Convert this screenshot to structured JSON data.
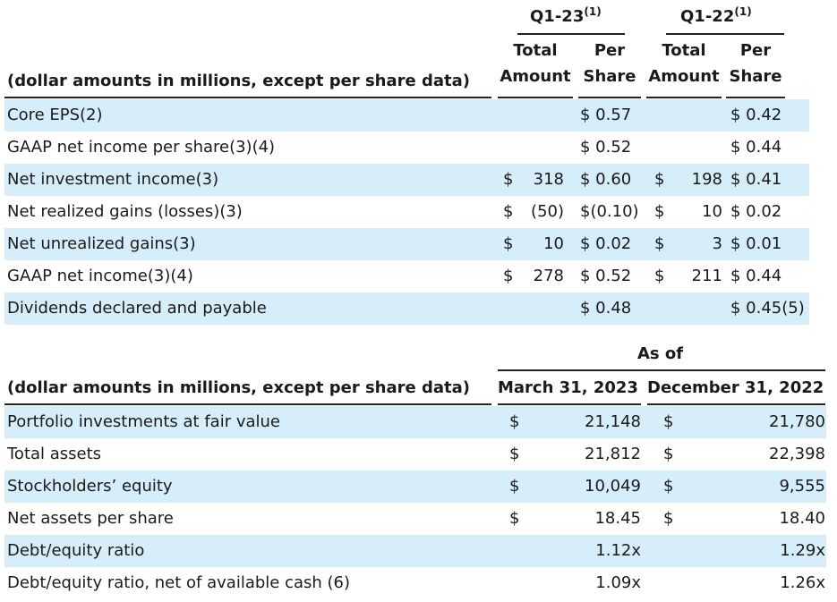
{
  "table1": {
    "periods": [
      {
        "label": "Q1-23",
        "note": "(1)"
      },
      {
        "label": "Q1-22",
        "note": "(1)"
      }
    ],
    "sub_headers": {
      "total_line1": "Total",
      "total_line2": "Amount",
      "per_line1": "Per",
      "per_line2": "Share"
    },
    "caption": "(dollar amounts in millions, except per share data)",
    "rows": [
      {
        "label": "Core EPS(2)",
        "q123_sign": "",
        "q123_total": "",
        "q123_per": "$ 0.57",
        "q122_sign": "",
        "q122_total": "",
        "q122_per": "$ 0.42"
      },
      {
        "label": "GAAP net income per share(3)(4)",
        "q123_sign": "",
        "q123_total": "",
        "q123_per": "$ 0.52",
        "q122_sign": "",
        "q122_total": "",
        "q122_per": "$ 0.44"
      },
      {
        "label": "Net investment income(3)",
        "q123_sign": "$",
        "q123_total": "318",
        "q123_per": "$ 0.60",
        "q122_sign": "$",
        "q122_total": "198",
        "q122_per": "$ 0.41"
      },
      {
        "label": "Net realized gains (losses)(3)",
        "q123_sign": "$",
        "q123_total": "(50)",
        "q123_per": "$(0.10)",
        "q122_sign": "$",
        "q122_total": "10",
        "q122_per": "$ 0.02"
      },
      {
        "label": "Net unrealized gains(3)",
        "q123_sign": "$",
        "q123_total": "10",
        "q123_per": "$ 0.02",
        "q122_sign": "$",
        "q122_total": "3",
        "q122_per": "$ 0.01"
      },
      {
        "label": "GAAP net income(3)(4)",
        "q123_sign": "$",
        "q123_total": "278",
        "q123_per": "$ 0.52",
        "q122_sign": "$",
        "q122_total": "211",
        "q122_per": "$ 0.44"
      },
      {
        "label": "Dividends declared and payable",
        "q123_sign": "",
        "q123_total": "",
        "q123_per": "$ 0.48",
        "q122_sign": "",
        "q122_total": "",
        "q122_per": "$ 0.45(5)"
      }
    ]
  },
  "table2": {
    "as_of": "As of",
    "caption": "(dollar amounts in millions, except per share data)",
    "col1": "March 31, 2023",
    "col2": "December 31, 2022",
    "rows": [
      {
        "label": "Portfolio investments at fair value",
        "sign1": "$",
        "v1": "21,148",
        "sign2": "$",
        "v2": "21,780"
      },
      {
        "label": "Total assets",
        "sign1": "$",
        "v1": "21,812",
        "sign2": "$",
        "v2": "22,398"
      },
      {
        "label": "Stockholders’ equity",
        "sign1": "$",
        "v1": "10,049",
        "sign2": "$",
        "v2": "9,555"
      },
      {
        "label": "Net assets per share",
        "sign1": "$",
        "v1": "18.45",
        "sign2": "$",
        "v2": "18.40"
      },
      {
        "label": "Debt/equity ratio",
        "sign1": "",
        "v1": "1.12x",
        "sign2": "",
        "v2": "1.29x"
      },
      {
        "label": "Debt/equity ratio, net of available cash (6)",
        "sign1": "",
        "v1": "1.09x",
        "sign2": "",
        "v2": "1.26x"
      }
    ]
  },
  "colors": {
    "row_shade": "#d6eefa",
    "rule": "#222222"
  }
}
